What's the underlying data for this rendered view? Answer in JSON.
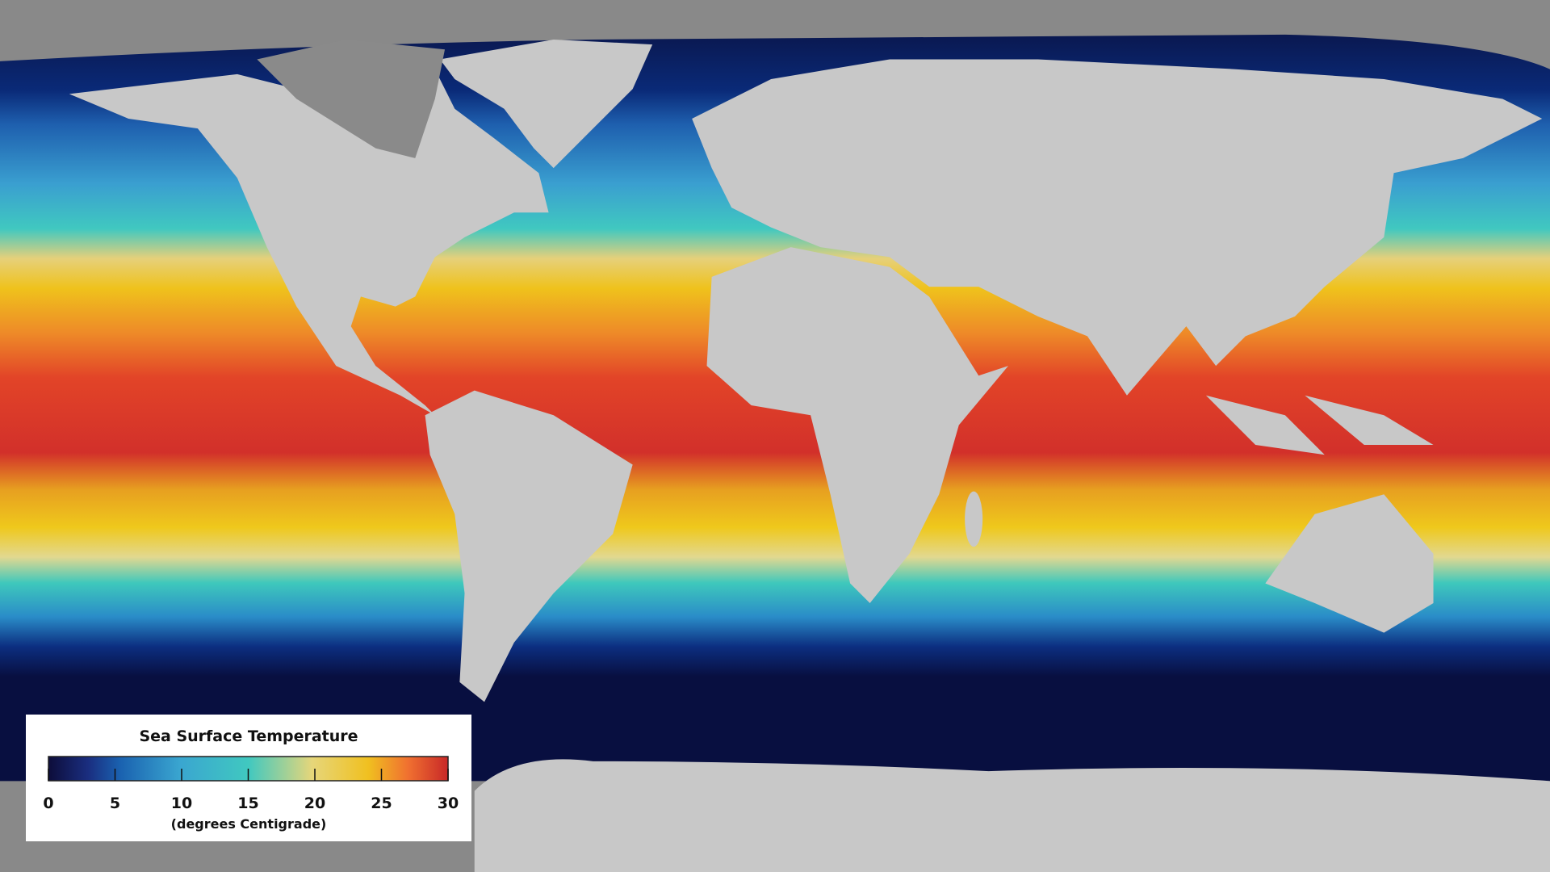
{
  "legend": {
    "title": "Sea Surface Temperature",
    "lim": [
      0,
      30
    ],
    "ticks": [
      0,
      5,
      10,
      15,
      20,
      25,
      30
    ],
    "unit": "(degrees Centigrade)"
  }
}
